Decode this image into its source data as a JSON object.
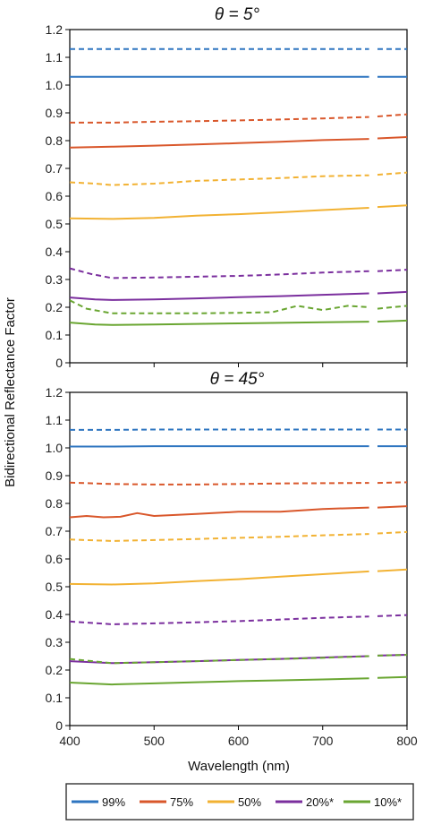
{
  "chart_data": [
    {
      "type": "line",
      "title": "θ = 5°",
      "ylabel": "Bidirectional Reflectance Factor",
      "xlabel": "Wavelength (nm)",
      "xlim": [
        400,
        800
      ],
      "ylim": [
        0,
        1.2
      ],
      "yticks": [
        "0",
        "0.1",
        "0.2",
        "0.3",
        "0.4",
        "0.5",
        "0.6",
        "0.7",
        "0.8",
        "0.9",
        "1.0",
        "1.1",
        "1.2"
      ],
      "xticks": [
        "400",
        "500",
        "600",
        "700",
        "800"
      ],
      "grid": false,
      "series": [
        {
          "name": "99%",
          "style": "dashed",
          "color": "#2e75c0",
          "x": [
            400,
            450,
            500,
            550,
            600,
            650,
            700,
            755,
            765,
            800
          ],
          "y": [
            1.13,
            1.13,
            1.13,
            1.13,
            1.13,
            1.13,
            1.13,
            1.13,
            1.13,
            1.13
          ]
        },
        {
          "name": "99%",
          "style": "solid",
          "color": "#2e75c0",
          "x": [
            400,
            450,
            500,
            550,
            600,
            650,
            700,
            755,
            765,
            800
          ],
          "y": [
            1.03,
            1.03,
            1.03,
            1.03,
            1.03,
            1.03,
            1.03,
            1.03,
            1.03,
            1.03
          ]
        },
        {
          "name": "75%",
          "style": "dashed",
          "color": "#d9572b",
          "x": [
            400,
            450,
            500,
            550,
            600,
            650,
            700,
            755,
            765,
            800
          ],
          "y": [
            0.865,
            0.865,
            0.868,
            0.87,
            0.873,
            0.876,
            0.88,
            0.885,
            0.887,
            0.895
          ]
        },
        {
          "name": "75%",
          "style": "solid",
          "color": "#d9572b",
          "x": [
            400,
            450,
            500,
            550,
            600,
            650,
            700,
            755,
            765,
            800
          ],
          "y": [
            0.775,
            0.778,
            0.782,
            0.786,
            0.791,
            0.796,
            0.802,
            0.806,
            0.808,
            0.813
          ]
        },
        {
          "name": "50%",
          "style": "dashed",
          "color": "#f2b233",
          "x": [
            400,
            430,
            450,
            500,
            550,
            600,
            650,
            700,
            755,
            765,
            800
          ],
          "y": [
            0.65,
            0.645,
            0.64,
            0.645,
            0.655,
            0.66,
            0.665,
            0.672,
            0.675,
            0.677,
            0.685
          ]
        },
        {
          "name": "50%",
          "style": "solid",
          "color": "#f2b233",
          "x": [
            400,
            450,
            500,
            550,
            600,
            650,
            700,
            755,
            765,
            800
          ],
          "y": [
            0.52,
            0.518,
            0.522,
            0.53,
            0.535,
            0.542,
            0.55,
            0.558,
            0.561,
            0.567
          ]
        },
        {
          "name": "20%*",
          "style": "dashed",
          "color": "#7b2f9e",
          "x": [
            400,
            425,
            450,
            500,
            550,
            600,
            650,
            700,
            755,
            765,
            800
          ],
          "y": [
            0.34,
            0.32,
            0.305,
            0.307,
            0.31,
            0.313,
            0.318,
            0.325,
            0.33,
            0.33,
            0.335
          ]
        },
        {
          "name": "20%*",
          "style": "solid",
          "color": "#7b2f9e",
          "x": [
            400,
            430,
            450,
            500,
            550,
            600,
            650,
            700,
            755,
            765,
            800
          ],
          "y": [
            0.235,
            0.228,
            0.226,
            0.228,
            0.232,
            0.236,
            0.24,
            0.245,
            0.25,
            0.25,
            0.255
          ]
        },
        {
          "name": "10%*",
          "style": "dashed",
          "color": "#6aa632",
          "x": [
            400,
            420,
            450,
            500,
            550,
            600,
            640,
            670,
            700,
            730,
            755,
            765,
            800
          ],
          "y": [
            0.225,
            0.195,
            0.178,
            0.178,
            0.178,
            0.18,
            0.182,
            0.205,
            0.19,
            0.205,
            0.2,
            0.195,
            0.205
          ]
        },
        {
          "name": "10%*",
          "style": "solid",
          "color": "#6aa632",
          "x": [
            400,
            430,
            450,
            500,
            550,
            600,
            650,
            700,
            755,
            765,
            800
          ],
          "y": [
            0.145,
            0.138,
            0.136,
            0.138,
            0.14,
            0.142,
            0.144,
            0.146,
            0.148,
            0.148,
            0.152
          ]
        }
      ]
    },
    {
      "type": "line",
      "title": "θ = 45°",
      "ylabel": "Bidirectional Reflectance Factor",
      "xlabel": "Wavelength (nm)",
      "xlim": [
        400,
        800
      ],
      "ylim": [
        0,
        1.2
      ],
      "yticks": [
        "0",
        "0.1",
        "0.2",
        "0.3",
        "0.4",
        "0.5",
        "0.6",
        "0.7",
        "0.8",
        "0.9",
        "1.0",
        "1.1",
        "1.2"
      ],
      "xticks": [
        "400",
        "500",
        "600",
        "700",
        "800"
      ],
      "grid": false,
      "series": [
        {
          "name": "99%",
          "style": "dashed",
          "color": "#2e75c0",
          "x": [
            400,
            450,
            500,
            550,
            600,
            650,
            700,
            755,
            765,
            800
          ],
          "y": [
            1.065,
            1.065,
            1.066,
            1.066,
            1.066,
            1.066,
            1.066,
            1.066,
            1.066,
            1.066
          ]
        },
        {
          "name": "99%",
          "style": "solid",
          "color": "#2e75c0",
          "x": [
            400,
            450,
            500,
            550,
            600,
            650,
            700,
            755,
            765,
            800
          ],
          "y": [
            1.005,
            1.005,
            1.006,
            1.006,
            1.006,
            1.006,
            1.006,
            1.006,
            1.006,
            1.006
          ]
        },
        {
          "name": "75%",
          "style": "dashed",
          "color": "#d9572b",
          "x": [
            400,
            450,
            500,
            550,
            600,
            650,
            700,
            755,
            765,
            800
          ],
          "y": [
            0.875,
            0.87,
            0.868,
            0.868,
            0.87,
            0.872,
            0.873,
            0.874,
            0.874,
            0.876
          ]
        },
        {
          "name": "75%",
          "style": "solid",
          "color": "#d9572b",
          "x": [
            400,
            420,
            440,
            460,
            480,
            500,
            550,
            600,
            650,
            700,
            755,
            765,
            800
          ],
          "y": [
            0.75,
            0.755,
            0.75,
            0.752,
            0.765,
            0.755,
            0.762,
            0.77,
            0.77,
            0.78,
            0.785,
            0.785,
            0.79
          ]
        },
        {
          "name": "50%",
          "style": "dashed",
          "color": "#f2b233",
          "x": [
            400,
            450,
            500,
            550,
            600,
            650,
            700,
            755,
            765,
            800
          ],
          "y": [
            0.67,
            0.665,
            0.668,
            0.672,
            0.676,
            0.68,
            0.685,
            0.69,
            0.692,
            0.697
          ]
        },
        {
          "name": "50%",
          "style": "solid",
          "color": "#f2b233",
          "x": [
            400,
            450,
            500,
            550,
            600,
            650,
            700,
            755,
            765,
            800
          ],
          "y": [
            0.51,
            0.508,
            0.512,
            0.52,
            0.527,
            0.536,
            0.545,
            0.555,
            0.556,
            0.562
          ]
        },
        {
          "name": "20%*",
          "style": "dashed",
          "color": "#7b2f9e",
          "x": [
            400,
            450,
            500,
            550,
            600,
            650,
            700,
            755,
            765,
            800
          ],
          "y": [
            0.375,
            0.365,
            0.368,
            0.372,
            0.376,
            0.382,
            0.388,
            0.393,
            0.394,
            0.398
          ]
        },
        {
          "name": "20%*",
          "style": "solid",
          "color": "#7b2f9e",
          "x": [
            400,
            450,
            500,
            550,
            600,
            650,
            700,
            755,
            765,
            800
          ],
          "y": [
            0.232,
            0.225,
            0.228,
            0.232,
            0.236,
            0.24,
            0.245,
            0.25,
            0.252,
            0.255
          ]
        },
        {
          "name": "10%*",
          "style": "dashed",
          "color": "#6aa632",
          "x": [
            400,
            450,
            500,
            550,
            600,
            650,
            700,
            755,
            765,
            800
          ],
          "y": [
            0.24,
            0.225,
            0.228,
            0.232,
            0.236,
            0.24,
            0.244,
            0.25,
            0.252,
            0.255
          ]
        },
        {
          "name": "10%*",
          "style": "solid",
          "color": "#6aa632",
          "x": [
            400,
            450,
            500,
            550,
            600,
            650,
            700,
            755,
            765,
            800
          ],
          "y": [
            0.155,
            0.148,
            0.152,
            0.156,
            0.16,
            0.163,
            0.166,
            0.17,
            0.172,
            0.175
          ]
        }
      ]
    }
  ],
  "legend": {
    "placement": "bottom",
    "entries": [
      {
        "label": "99%",
        "color": "#2e75c0"
      },
      {
        "label": "75%",
        "color": "#d9572b"
      },
      {
        "label": "50%",
        "color": "#f2b233"
      },
      {
        "label": "20%*",
        "color": "#7b2f9e"
      },
      {
        "label": "10%*",
        "color": "#6aa632"
      }
    ]
  }
}
